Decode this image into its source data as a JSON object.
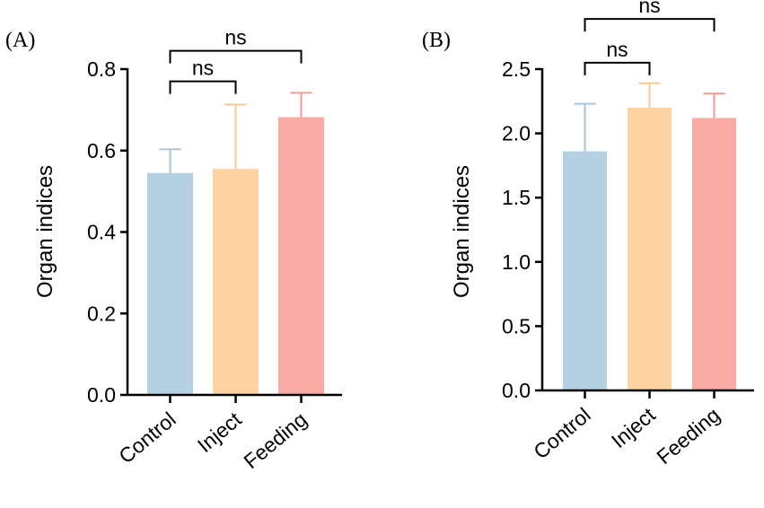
{
  "panels": [
    {
      "label": "(A)"
    },
    {
      "label": "(B)"
    }
  ],
  "chart_data": [
    {
      "type": "bar",
      "panel": "(A)",
      "categories": [
        "Control",
        "Inject",
        "Feeding"
      ],
      "values": [
        0.545,
        0.555,
        0.682
      ],
      "errors": [
        0.058,
        0.158,
        0.06
      ],
      "colors": [
        "#b5cfe3",
        "#fdd3a4",
        "#f8aaa5"
      ],
      "error_colors": [
        "#a9c6de",
        "#f8c894",
        "#f29b96"
      ],
      "ylabel": "Organ indices",
      "xlabel": "",
      "ylim": [
        0,
        0.8
      ],
      "yticks": [
        "0.0",
        "0.2",
        "0.4",
        "0.6",
        "0.8"
      ],
      "significance": [
        {
          "from": 0,
          "to": 1,
          "label": "ns",
          "level": 0.77
        },
        {
          "from": 0,
          "to": 2,
          "label": "ns",
          "level": 0.845
        }
      ]
    },
    {
      "type": "bar",
      "panel": "(B)",
      "categories": [
        "Control",
        "Inject",
        "Feeding"
      ],
      "values": [
        1.86,
        2.2,
        2.12
      ],
      "errors": [
        0.37,
        0.19,
        0.19
      ],
      "colors": [
        "#b5cfe3",
        "#fdd3a4",
        "#f8aaa5"
      ],
      "error_colors": [
        "#a9c6de",
        "#f8c894",
        "#f29b96"
      ],
      "ylabel": "Organ indices",
      "xlabel": "",
      "ylim": [
        0,
        2.5
      ],
      "yticks": [
        "0.0",
        "0.5",
        "1.0",
        "1.5",
        "2.0",
        "2.5"
      ],
      "significance": [
        {
          "from": 0,
          "to": 1,
          "label": "ns",
          "level": 2.55
        },
        {
          "from": 0,
          "to": 2,
          "label": "ns",
          "level": 2.89
        }
      ]
    }
  ]
}
